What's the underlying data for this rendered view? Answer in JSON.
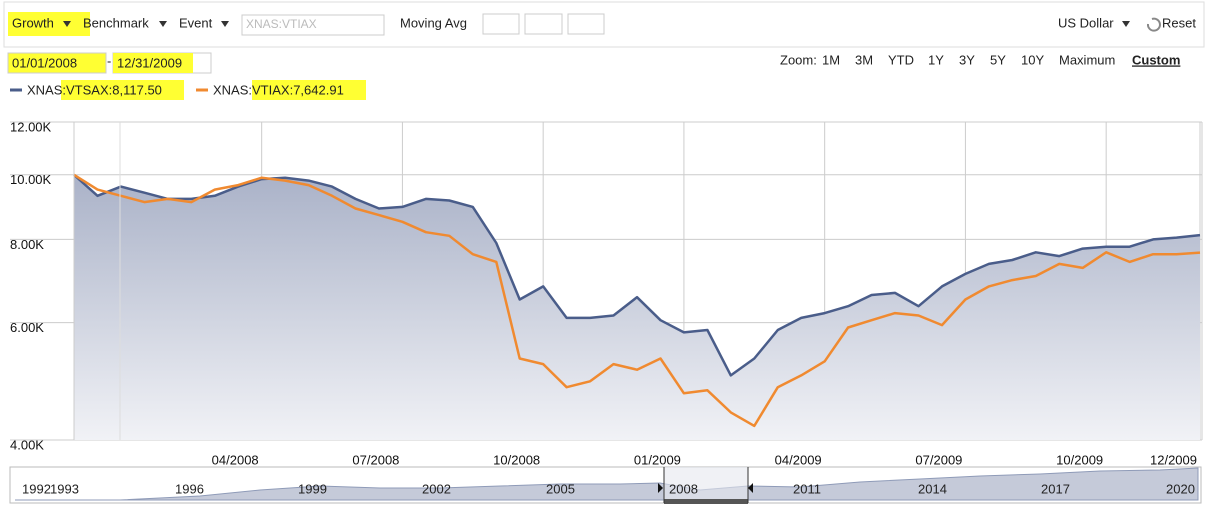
{
  "toolbar": {
    "growth": "Growth",
    "benchmark": "Benchmark",
    "event": "Event",
    "search_placeholder": "XNAS:VTIAX",
    "moving_avg": "Moving Avg",
    "currency": "US Dollar",
    "reset": "Reset"
  },
  "range": {
    "start": "01/01/2008",
    "separator": "-",
    "end": "12/31/2009"
  },
  "zoom": {
    "label": "Zoom:",
    "options": [
      "1M",
      "3M",
      "YTD",
      "1Y",
      "3Y",
      "5Y",
      "10Y",
      "Maximum",
      "Custom"
    ]
  },
  "navigator": {
    "labels": [
      "1992",
      "1993",
      "1996",
      "1999",
      "2002",
      "2005",
      "2008",
      "2011",
      "2014",
      "2017",
      "2020"
    ]
  },
  "chart_data": {
    "type": "line",
    "log_scale": true,
    "grid": true,
    "area": true,
    "legend_separator": ":",
    "categories": [
      null,
      null,
      null,
      null,
      null,
      null,
      null,
      null,
      "04/2008",
      null,
      null,
      null,
      null,
      null,
      "07/2008",
      null,
      null,
      null,
      null,
      null,
      "10/2008",
      null,
      null,
      null,
      null,
      null,
      "01/2009",
      null,
      null,
      null,
      null,
      null,
      "04/2009",
      null,
      null,
      null,
      null,
      null,
      "07/2009",
      null,
      null,
      null,
      null,
      null,
      "10/2009",
      null,
      null,
      null,
      "12/2009"
    ],
    "ylim": [
      4000,
      12000
    ],
    "yticks": [
      {
        "value": 4000,
        "label": "4.00K"
      },
      {
        "value": 6000,
        "label": "6.00K"
      },
      {
        "value": 8000,
        "label": "8.00K"
      },
      {
        "value": 10000,
        "label": "10.00K"
      },
      {
        "value": 12000,
        "label": "12.00K"
      }
    ],
    "series": [
      {
        "name": "XNAS:VTSAX",
        "color": "#4a5d8a",
        "values": [
          10000,
          9300,
          9600,
          9400,
          9200,
          9200,
          9300,
          9600,
          9850,
          9900,
          9800,
          9600,
          9200,
          8900,
          8950,
          9200,
          9150,
          8950,
          7900,
          6500,
          6800,
          6100,
          6100,
          6150,
          6550,
          6050,
          5800,
          5850,
          5000,
          5300,
          5850,
          6100,
          6200,
          6350,
          6600,
          6650,
          6350,
          6800,
          7100,
          7350,
          7450,
          7650,
          7550,
          7750,
          7800,
          7800,
          8000,
          8050,
          8117.5
        ],
        "value_labels": [
          null,
          null,
          null,
          null,
          null,
          null,
          null,
          null,
          null,
          null,
          null,
          null,
          null,
          null,
          null,
          null,
          null,
          null,
          null,
          null,
          null,
          null,
          null,
          null,
          null,
          null,
          null,
          null,
          null,
          null,
          null,
          null,
          null,
          null,
          null,
          null,
          null,
          null,
          null,
          null,
          null,
          null,
          null,
          null,
          null,
          null,
          null,
          null,
          "8,117.50"
        ]
      },
      {
        "name": "XNAS:VTIAX",
        "color": "#f08a30",
        "values": [
          10000,
          9500,
          9300,
          9100,
          9200,
          9100,
          9500,
          9650,
          9900,
          9800,
          9650,
          9300,
          8900,
          8700,
          8500,
          8200,
          8100,
          7600,
          7400,
          5300,
          5200,
          4800,
          4900,
          5200,
          5100,
          5300,
          4700,
          4750,
          4400,
          4200,
          4800,
          5000,
          5250,
          5900,
          6050,
          6200,
          6150,
          5950,
          6500,
          6800,
          6950,
          7050,
          7350,
          7250,
          7650,
          7400,
          7600,
          7600,
          7642.91
        ],
        "value_labels": [
          null,
          null,
          null,
          null,
          null,
          null,
          null,
          null,
          null,
          null,
          null,
          null,
          null,
          null,
          null,
          null,
          null,
          null,
          null,
          null,
          null,
          null,
          null,
          null,
          null,
          null,
          null,
          null,
          null,
          null,
          null,
          null,
          null,
          null,
          null,
          null,
          null,
          null,
          null,
          null,
          null,
          null,
          null,
          null,
          null,
          null,
          null,
          null,
          "7,642.91"
        ]
      }
    ]
  }
}
